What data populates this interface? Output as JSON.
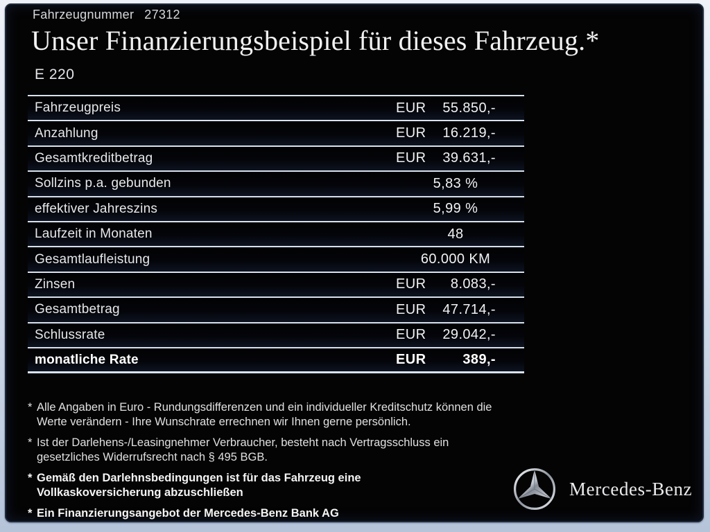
{
  "header": {
    "vehicle_number_label": "Fahrzeugnummer",
    "vehicle_number": "27312",
    "title": "Unser Finanzierungsbeispiel für dieses Fahrzeug.*",
    "model": "E 220"
  },
  "finance_table": {
    "rows": [
      {
        "label": "Fahrzeugpreis",
        "currency": "EUR",
        "value": "55.850,-",
        "bold": false
      },
      {
        "label": "Anzahlung",
        "currency": "EUR",
        "value": "16.219,-",
        "bold": false
      },
      {
        "label": "Gesamtkreditbetrag",
        "currency": "EUR",
        "value": "39.631,-",
        "bold": false
      },
      {
        "label": "Sollzins p.a. gebunden",
        "currency": "",
        "value": "5,83 %",
        "bold": false
      },
      {
        "label": "effektiver Jahreszins",
        "currency": "",
        "value": "5,99 %",
        "bold": false
      },
      {
        "label": "Laufzeit in Monaten",
        "currency": "",
        "value": "48",
        "bold": false
      },
      {
        "label": "Gesamtlaufleistung",
        "currency": "",
        "value": "60.000 KM",
        "bold": false
      },
      {
        "label": "Zinsen",
        "currency": "EUR",
        "value": "8.083,-",
        "bold": false
      },
      {
        "label": "Gesamtbetrag",
        "currency": "EUR",
        "value": "47.714,-",
        "bold": false
      },
      {
        "label": "Schlussrate",
        "currency": "EUR",
        "value": "29.042,-",
        "bold": false
      },
      {
        "label": "monatliche Rate",
        "currency": "EUR",
        "value": "389,-",
        "bold": true
      }
    ]
  },
  "footnotes": [
    {
      "marker": "*",
      "bold": false,
      "lines": [
        "Alle Angaben in Euro - Rundungsdifferenzen und ein individueller Kreditschutz können die",
        "Werte verändern - Ihre Wunschrate errechnen wir Ihnen gerne persönlich."
      ]
    },
    {
      "marker": "*",
      "bold": false,
      "lines": [
        "Ist der Darlehens-/Leasingnehmer Verbraucher, besteht nach Vertragsschluss ein",
        "gesetzliches Widerrufsrecht nach § 495 BGB."
      ]
    },
    {
      "marker": "*",
      "bold": true,
      "lines": [
        "Gemäß den Darlehnsbedingungen ist für das Fahrzeug eine",
        "Vollkaskoversicherung abzuschließen"
      ]
    },
    {
      "marker": "*",
      "bold": true,
      "lines": [
        "Ein Finanzierungsangebot der Mercedes-Benz Bank AG"
      ]
    }
  ],
  "brand": {
    "logo_icon": "mercedes-star-icon",
    "name": "Mercedes-Benz"
  },
  "colors": {
    "panel_background": "#040405",
    "frame_background": "#b6c4da",
    "separator_line": "#d9e2ee",
    "text_primary": "#f0f2f4",
    "text_secondary": "#e0e0e0"
  }
}
